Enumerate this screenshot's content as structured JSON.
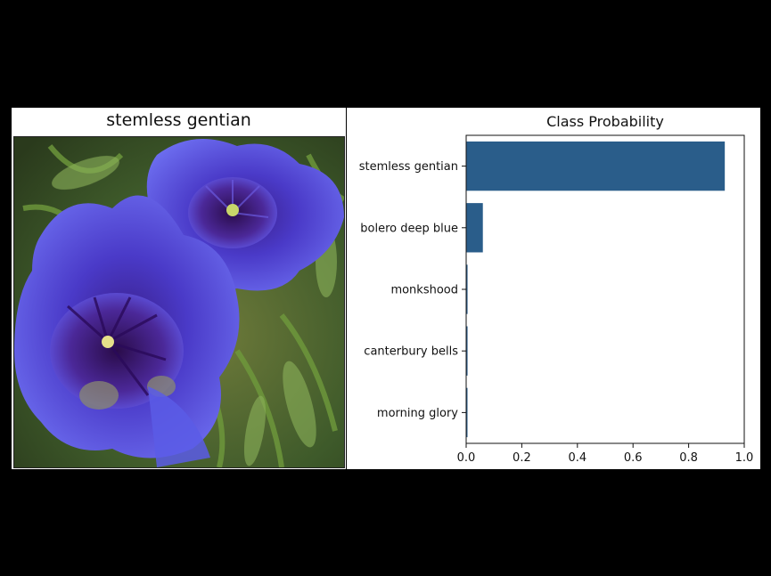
{
  "image_panel": {
    "title": "stemless gentian",
    "image_label": "flower photo"
  },
  "chart_data": {
    "type": "bar",
    "orientation": "horizontal",
    "title": "Class Probability",
    "xlabel": "",
    "ylabel": "",
    "categories": [
      "stemless gentian",
      "bolero deep blue",
      "monkshood",
      "canterbury bells",
      "morning glory"
    ],
    "values": [
      0.93,
      0.06,
      0.005,
      0.005,
      0.003
    ],
    "xlim": [
      0.0,
      1.0
    ],
    "xticks": [
      "0.0",
      "0.2",
      "0.4",
      "0.6",
      "0.8",
      "1.0"
    ],
    "bar_color": "#2a5d8a",
    "grid": false
  }
}
